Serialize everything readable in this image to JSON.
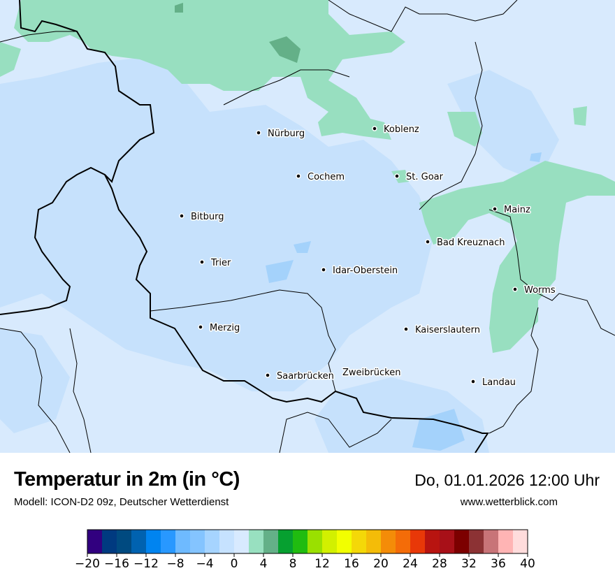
{
  "map": {
    "background_color": "#d8eafd",
    "cooler_zone_color": "#c6e1fc",
    "coldest_zone_color": "#a4d2fb",
    "warm_zone_color": "#98dfc0",
    "warmer_zone_color": "#64b088",
    "cities": [
      {
        "name": "Nürburg"
      },
      {
        "name": "Koblenz"
      },
      {
        "name": "Cochem"
      },
      {
        "name": "St. Goar"
      },
      {
        "name": "Bitburg"
      },
      {
        "name": "Mainz"
      },
      {
        "name": "Bad Kreuznach"
      },
      {
        "name": "Trier"
      },
      {
        "name": "Idar-Oberstein"
      },
      {
        "name": "Worms"
      },
      {
        "name": "Merzig"
      },
      {
        "name": "Kaiserslautern"
      },
      {
        "name": "Saarbrücken"
      },
      {
        "name": "Zweibrücken"
      },
      {
        "name": "Landau"
      }
    ]
  },
  "header": {
    "title": "Temperatur in 2m (in °C)",
    "subtitle": "Modell: ICON-D2 09z, Deutscher Wetterdienst",
    "datetime": "Do, 01.01.2026 12:00 Uhr",
    "website": "www.wetterblick.com"
  },
  "legend": {
    "min": -20,
    "max": 40,
    "step": 2,
    "tick_labels": [
      "−20",
      "−16",
      "−12",
      "−8",
      "−4",
      "0",
      "4",
      "8",
      "12",
      "16",
      "20",
      "24",
      "28",
      "32",
      "36",
      "40"
    ],
    "colors": [
      "#31007f",
      "#003a80",
      "#004a80",
      "#0062b0",
      "#0084f0",
      "#2898ff",
      "#6ebaff",
      "#84c4ff",
      "#a6d4ff",
      "#c6e2ff",
      "#d8eaff",
      "#98e0c0",
      "#64b088",
      "#06a030",
      "#20bc10",
      "#9ae000",
      "#d2f000",
      "#f2ff00",
      "#f4d808",
      "#f4bc08",
      "#f48c08",
      "#f46c08",
      "#e83808",
      "#b81410",
      "#a81018",
      "#7c0000",
      "#8c3234",
      "#c87478",
      "#ffb4b4",
      "#ffdcdc"
    ]
  }
}
